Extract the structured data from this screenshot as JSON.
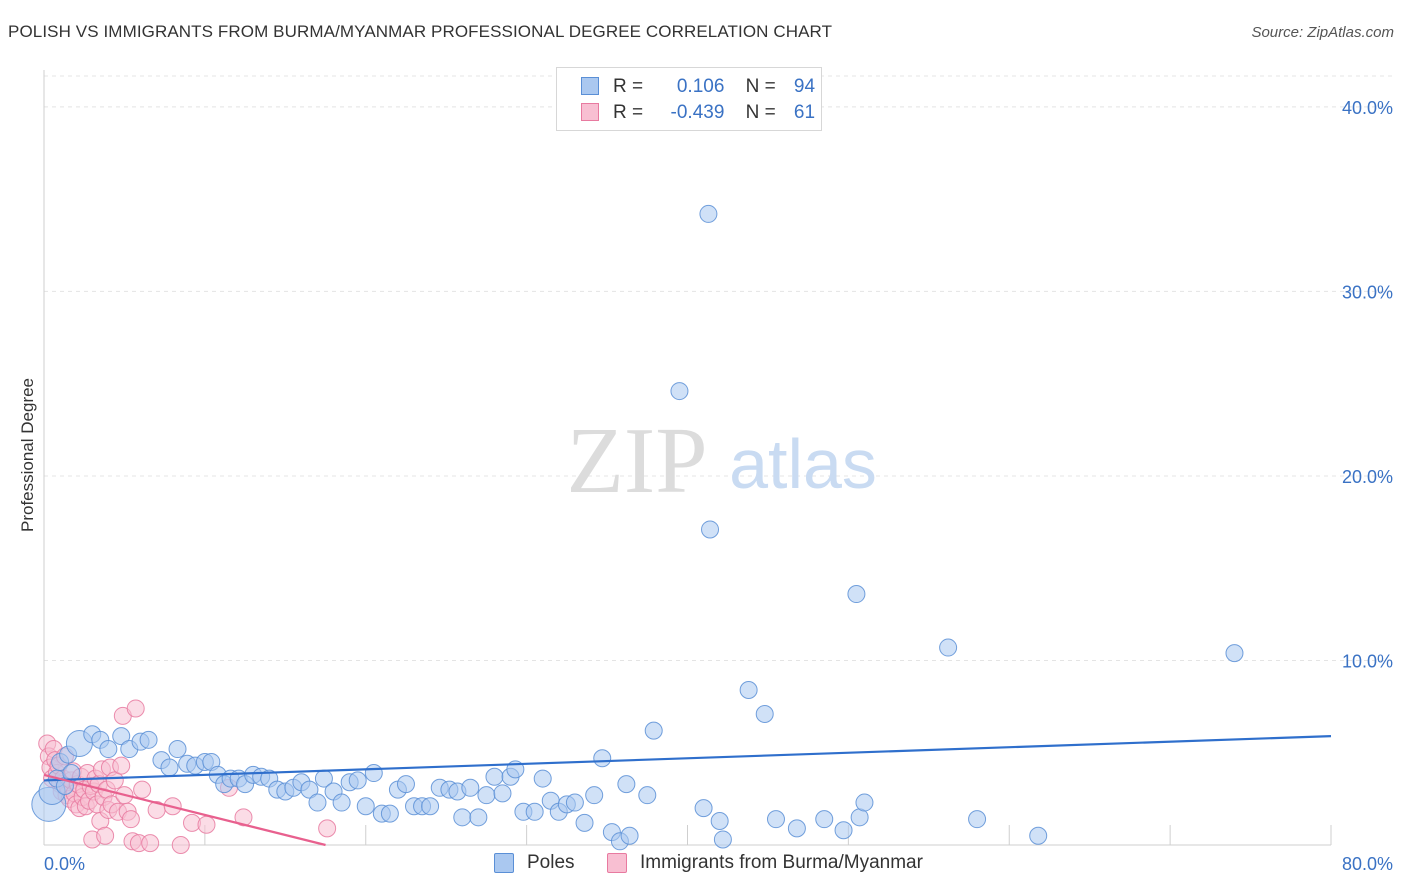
{
  "header": {
    "title": "POLISH VS IMMIGRANTS FROM BURMA/MYANMAR PROFESSIONAL DEGREE CORRELATION CHART",
    "source": "Source: ZipAtlas.com"
  },
  "watermark": {
    "zip": "ZIP",
    "atlas": "atlas"
  },
  "legend": {
    "rows": [
      {
        "r_label": "R =",
        "r_value": "0.106",
        "n_label": "N =",
        "n_value": "94",
        "color": "#aac8f0",
        "stroke": "#5a8fd6"
      },
      {
        "r_label": "R =",
        "r_value": "-0.439",
        "n_label": "N =",
        "n_value": "61",
        "color": "#f8bfd2",
        "stroke": "#e87aa0"
      }
    ]
  },
  "bottom_legend": {
    "items": [
      {
        "label": "Poles",
        "color": "#aac8f0",
        "stroke": "#5a8fd6"
      },
      {
        "label": "Immigrants from Burma/Myanmar",
        "color": "#f8bfd2",
        "stroke": "#e87aa0"
      }
    ]
  },
  "chart_data": {
    "type": "scatter",
    "title": "POLISH VS IMMIGRANTS FROM BURMA/MYANMAR PROFESSIONAL DEGREE CORRELATION CHART",
    "xlabel": "",
    "ylabel": "Professional Degree",
    "xlim": [
      0,
      80
    ],
    "ylim": [
      0,
      42
    ],
    "x_tick_labels": [
      "0.0%",
      "80.0%"
    ],
    "y_ticks": [
      10,
      20,
      30,
      40
    ],
    "y_tick_labels": [
      "10.0%",
      "20.0%",
      "30.0%",
      "40.0%"
    ],
    "grid": true,
    "colors": {
      "blue": "#5a8fd6",
      "blue_fill": "#aac8f0",
      "blue_line": "#2f6fcc",
      "pink": "#e87aa0",
      "pink_fill": "#f8bfd2",
      "pink_line": "#e8608e",
      "axis_text": "#3a72c4"
    },
    "series": [
      {
        "name": "Poles",
        "r": 0.106,
        "n": 94,
        "trend": {
          "x": [
            0,
            80
          ],
          "y": [
            3.5,
            5.9
          ]
        },
        "points": [
          [
            0.3,
            2.2,
            3
          ],
          [
            0.5,
            2.9,
            2
          ],
          [
            0.8,
            3.6,
            1
          ],
          [
            1.0,
            4.5,
            1
          ],
          [
            1.3,
            3.2,
            1
          ],
          [
            1.5,
            4.9,
            1
          ],
          [
            1.7,
            3.9,
            1
          ],
          [
            2.2,
            5.5,
            2
          ],
          [
            3.0,
            6.0,
            1
          ],
          [
            3.5,
            5.7,
            1
          ],
          [
            4.0,
            5.2,
            1
          ],
          [
            4.8,
            5.9,
            1
          ],
          [
            5.3,
            5.2,
            1
          ],
          [
            6.0,
            5.6,
            1
          ],
          [
            6.5,
            5.7,
            1
          ],
          [
            7.3,
            4.6,
            1
          ],
          [
            7.8,
            4.2,
            1
          ],
          [
            8.3,
            5.2,
            1
          ],
          [
            8.9,
            4.4,
            1
          ],
          [
            9.4,
            4.3,
            1
          ],
          [
            10.0,
            4.5,
            1
          ],
          [
            10.4,
            4.5,
            1
          ],
          [
            10.8,
            3.8,
            1
          ],
          [
            11.2,
            3.3,
            1
          ],
          [
            11.6,
            3.6,
            1
          ],
          [
            12.1,
            3.6,
            1
          ],
          [
            12.5,
            3.3,
            1
          ],
          [
            13.0,
            3.8,
            1
          ],
          [
            13.5,
            3.7,
            1
          ],
          [
            14.0,
            3.6,
            1
          ],
          [
            14.5,
            3.0,
            1
          ],
          [
            15.0,
            2.9,
            1
          ],
          [
            15.5,
            3.1,
            1
          ],
          [
            16.0,
            3.4,
            1
          ],
          [
            16.5,
            3.0,
            1
          ],
          [
            17.0,
            2.3,
            1
          ],
          [
            17.4,
            3.6,
            1
          ],
          [
            18.0,
            2.9,
            1
          ],
          [
            18.5,
            2.3,
            1
          ],
          [
            19.0,
            3.4,
            1
          ],
          [
            19.5,
            3.5,
            1
          ],
          [
            20.0,
            2.1,
            1
          ],
          [
            20.5,
            3.9,
            1
          ],
          [
            21.0,
            1.7,
            1
          ],
          [
            21.5,
            1.7,
            1
          ],
          [
            22.0,
            3.0,
            1
          ],
          [
            22.5,
            3.3,
            1
          ],
          [
            23.0,
            2.1,
            1
          ],
          [
            23.5,
            2.1,
            1
          ],
          [
            24.0,
            2.1,
            1
          ],
          [
            24.6,
            3.1,
            1
          ],
          [
            25.2,
            3.0,
            1
          ],
          [
            25.7,
            2.9,
            1
          ],
          [
            26.0,
            1.5,
            1
          ],
          [
            26.5,
            3.1,
            1
          ],
          [
            27.0,
            1.5,
            1
          ],
          [
            27.5,
            2.7,
            1
          ],
          [
            28.0,
            3.7,
            1
          ],
          [
            28.5,
            2.8,
            1
          ],
          [
            29.0,
            3.7,
            1
          ],
          [
            29.3,
            4.1,
            1
          ],
          [
            29.8,
            1.8,
            1
          ],
          [
            30.5,
            1.8,
            1
          ],
          [
            31.0,
            3.6,
            1
          ],
          [
            31.5,
            2.4,
            1
          ],
          [
            32.0,
            1.8,
            1
          ],
          [
            32.5,
            2.2,
            1
          ],
          [
            33.0,
            2.3,
            1
          ],
          [
            33.6,
            1.2,
            1
          ],
          [
            34.2,
            2.7,
            1
          ],
          [
            34.7,
            4.7,
            1
          ],
          [
            35.3,
            0.7,
            1
          ],
          [
            35.8,
            0.2,
            1
          ],
          [
            36.2,
            3.3,
            1
          ],
          [
            36.4,
            0.5,
            1
          ],
          [
            37.5,
            2.7,
            1
          ],
          [
            37.9,
            6.2,
            1
          ],
          [
            39.5,
            24.6,
            1
          ],
          [
            41.4,
            17.1,
            1
          ],
          [
            41.3,
            34.2,
            1
          ],
          [
            41.0,
            2.0,
            1
          ],
          [
            42.0,
            1.3,
            1
          ],
          [
            42.2,
            0.3,
            1
          ],
          [
            43.8,
            8.4,
            1
          ],
          [
            44.8,
            7.1,
            1
          ],
          [
            45.5,
            1.4,
            1
          ],
          [
            46.8,
            0.9,
            1
          ],
          [
            48.5,
            1.4,
            1
          ],
          [
            49.7,
            0.8,
            1
          ],
          [
            50.7,
            1.5,
            1
          ],
          [
            51.0,
            2.3,
            1
          ],
          [
            50.5,
            13.6,
            1
          ],
          [
            56.2,
            10.7,
            1
          ],
          [
            58.0,
            1.4,
            1
          ],
          [
            61.8,
            0.5,
            1
          ],
          [
            74.0,
            10.4,
            1
          ]
        ]
      },
      {
        "name": "Immigrants from Burma/Myanmar",
        "r": -0.439,
        "n": 61,
        "trend": {
          "x": [
            0,
            17.5
          ],
          "y": [
            3.8,
            0.0
          ]
        },
        "points": [
          [
            0.2,
            5.5,
            1
          ],
          [
            0.3,
            4.8,
            1
          ],
          [
            0.4,
            4.2,
            1
          ],
          [
            0.5,
            3.6,
            1
          ],
          [
            0.6,
            5.2,
            1
          ],
          [
            0.7,
            4.6,
            1
          ],
          [
            0.8,
            3.9,
            1
          ],
          [
            0.9,
            4.3,
            1
          ],
          [
            1.0,
            3.3,
            1
          ],
          [
            1.1,
            2.9,
            1
          ],
          [
            1.2,
            3.6,
            1
          ],
          [
            1.3,
            4.8,
            1
          ],
          [
            1.4,
            2.7,
            1
          ],
          [
            1.5,
            3.1,
            1
          ],
          [
            1.6,
            2.5,
            1
          ],
          [
            1.7,
            3.5,
            1
          ],
          [
            1.8,
            4.0,
            1
          ],
          [
            1.9,
            2.8,
            1
          ],
          [
            2.0,
            2.2,
            1
          ],
          [
            2.1,
            3.3,
            1
          ],
          [
            2.2,
            2.0,
            1
          ],
          [
            2.3,
            3.7,
            1
          ],
          [
            2.4,
            2.6,
            1
          ],
          [
            2.5,
            3.0,
            1
          ],
          [
            2.6,
            2.1,
            1
          ],
          [
            2.7,
            3.9,
            1
          ],
          [
            2.8,
            2.4,
            1
          ],
          [
            2.9,
            3.2,
            1
          ],
          [
            3.0,
            0.3,
            1
          ],
          [
            3.1,
            2.9,
            1
          ],
          [
            3.2,
            3.6,
            1
          ],
          [
            3.3,
            2.2,
            1
          ],
          [
            3.4,
            3.3,
            1
          ],
          [
            3.5,
            1.3,
            1
          ],
          [
            3.6,
            4.1,
            1
          ],
          [
            3.7,
            2.6,
            1
          ],
          [
            3.8,
            0.5,
            1
          ],
          [
            3.9,
            3.0,
            1
          ],
          [
            4.0,
            1.9,
            1
          ],
          [
            4.1,
            4.2,
            1
          ],
          [
            4.2,
            2.2,
            1
          ],
          [
            4.4,
            3.5,
            1
          ],
          [
            4.6,
            1.8,
            1
          ],
          [
            4.8,
            4.3,
            1
          ],
          [
            4.9,
            7.0,
            1
          ],
          [
            5.0,
            2.7,
            1
          ],
          [
            5.2,
            1.8,
            1
          ],
          [
            5.4,
            1.4,
            1
          ],
          [
            5.5,
            0.2,
            1
          ],
          [
            5.7,
            7.4,
            1
          ],
          [
            5.9,
            0.1,
            1
          ],
          [
            6.1,
            3.0,
            1
          ],
          [
            6.6,
            0.1,
            1
          ],
          [
            7.0,
            1.9,
            1
          ],
          [
            8.0,
            2.1,
            1
          ],
          [
            8.5,
            0.0,
            1
          ],
          [
            9.2,
            1.2,
            1
          ],
          [
            10.1,
            1.1,
            1
          ],
          [
            11.5,
            3.1,
            1
          ],
          [
            12.4,
            1.5,
            1
          ],
          [
            17.6,
            0.9,
            1
          ]
        ]
      }
    ]
  }
}
